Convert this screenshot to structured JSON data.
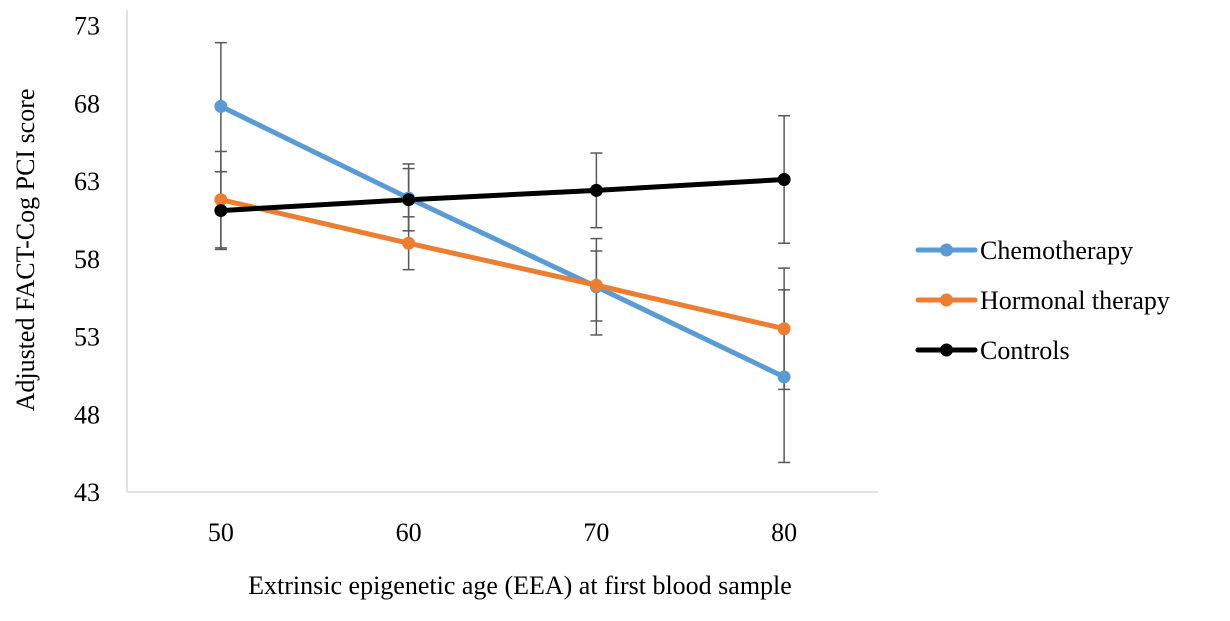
{
  "chart_data": {
    "type": "line",
    "title": "",
    "xlabel": "Extrinsic epigenetic age (EEA) at first blood sample",
    "ylabel": "Adjusted FACT-Cog PCI score",
    "x": [
      50,
      60,
      70,
      80
    ],
    "x_tick_labels": [
      "50",
      "60",
      "70",
      "80"
    ],
    "y_ticks": [
      43,
      48,
      53,
      58,
      63,
      68,
      73
    ],
    "y_tick_labels": [
      "43",
      "48",
      "53",
      "58",
      "63",
      "68",
      "73"
    ],
    "ylim": [
      43,
      74
    ],
    "grid": false,
    "legend_position": "right",
    "series": [
      {
        "name": "Chemotherapy",
        "color": "#5b9bd5",
        "values": [
          67.8,
          61.9,
          56.2,
          50.4
        ],
        "error_low": [
          63.6,
          59.8,
          53.1,
          44.9
        ],
        "error_high": [
          71.9,
          64.1,
          59.3,
          56.0
        ]
      },
      {
        "name": "Hormonal therapy",
        "color": "#ed7d31",
        "values": [
          61.8,
          59.0,
          56.3,
          53.5
        ],
        "error_low": [
          58.6,
          57.3,
          54.0,
          49.6
        ],
        "error_high": [
          64.9,
          60.7,
          58.5,
          57.4
        ]
      },
      {
        "name": "Controls",
        "color": "#000000",
        "values": [
          61.1,
          61.8,
          62.4,
          63.1
        ],
        "error_low": [
          58.7,
          59.8,
          60.0,
          59.0
        ],
        "error_high": [
          63.6,
          63.8,
          64.8,
          67.2
        ]
      }
    ]
  }
}
